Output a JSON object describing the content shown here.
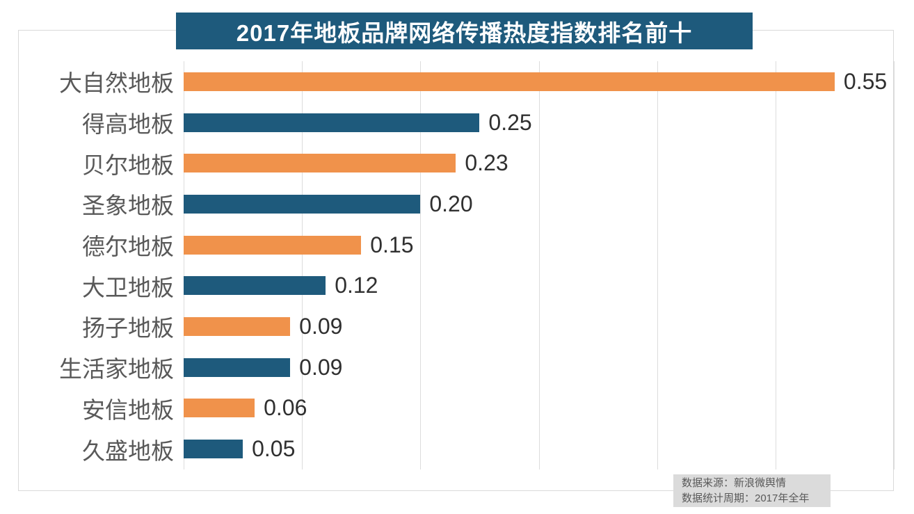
{
  "title": "2017年地板品牌网络传播热度指数排名前十",
  "chart_data": {
    "type": "bar",
    "orientation": "horizontal",
    "title": "2017年地板品牌网络传播热度指数排名前十",
    "categories": [
      "大自然地板",
      "得高地板",
      "贝尔地板",
      "圣象地板",
      "德尔地板",
      "大卫地板",
      "扬子地板",
      "生活家地板",
      "安信地板",
      "久盛地板"
    ],
    "values": [
      0.55,
      0.25,
      0.23,
      0.2,
      0.15,
      0.12,
      0.09,
      0.09,
      0.06,
      0.05
    ],
    "value_labels": [
      "0.55",
      "0.25",
      "0.23",
      "0.20",
      "0.15",
      "0.12",
      "0.09",
      "0.09",
      "0.06",
      "0.05"
    ],
    "xlim": [
      0,
      0.6
    ],
    "gridline_step": 0.1,
    "grid": "vertical-gridlines-on",
    "legend": "none",
    "bar_colors_alternating": [
      "#F0924B",
      "#1E5A7C"
    ]
  },
  "source_note": {
    "line1": "数据来源：新浪微舆情",
    "line2": "数据统计周期：2017年全年"
  },
  "colors": {
    "banner_bg": "#1E5A7C",
    "banner_text": "#FFFFFF",
    "bar_orange": "#F0924B",
    "bar_blue": "#1E5A7C",
    "category_label": "#595959",
    "value_label": "#303030",
    "gridline": "#DCDCDC",
    "frame_border": "#D9D9D9",
    "source_bg": "#DBDBDB",
    "source_text": "#595959"
  }
}
